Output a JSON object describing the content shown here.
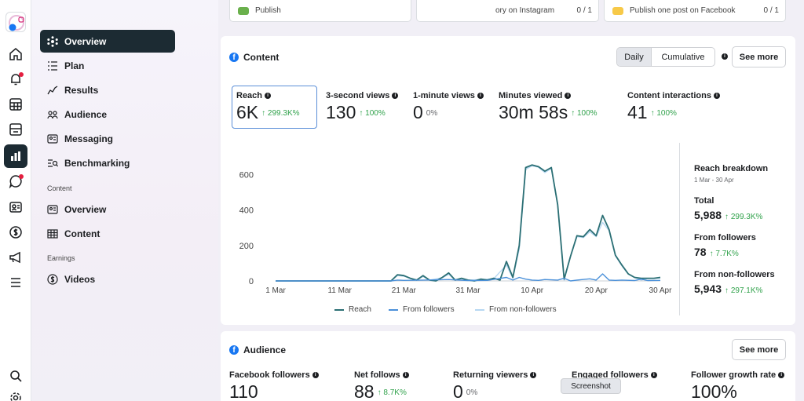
{
  "top_tasks": [
    {
      "text": "Publish",
      "count": ""
    },
    {
      "text": "ory on Instagram",
      "count": "0 / 1"
    },
    {
      "text": "Publish one post on Facebook",
      "count": "0 / 1"
    }
  ],
  "sidebar": {
    "items": [
      {
        "label": "Overview",
        "icon": "overview-icon"
      },
      {
        "label": "Plan",
        "icon": "plan-icon"
      },
      {
        "label": "Results",
        "icon": "results-icon"
      },
      {
        "label": "Audience",
        "icon": "audience-icon"
      },
      {
        "label": "Messaging",
        "icon": "messaging-icon"
      },
      {
        "label": "Benchmarking",
        "icon": "benchmarking-icon"
      }
    ],
    "content_heading": "Content",
    "content_items": [
      {
        "label": "Overview",
        "icon": "content-overview-icon"
      },
      {
        "label": "Content",
        "icon": "content-table-icon"
      }
    ],
    "earnings_heading": "Earnings",
    "earnings_items": [
      {
        "label": "Videos",
        "icon": "dollar-icon"
      }
    ]
  },
  "content_card": {
    "title": "Content",
    "toggle": {
      "daily": "Daily",
      "cumulative": "Cumulative"
    },
    "see_more": "See more",
    "metrics": [
      {
        "label": "Reach",
        "value": "6K",
        "change": "↑ 299.3K%"
      },
      {
        "label": "3-second views",
        "value": "130",
        "change": "↑ 100%"
      },
      {
        "label": "1-minute views",
        "value": "0",
        "change": "0%"
      },
      {
        "label": "Minutes viewed",
        "value": "30m 58s",
        "change": "↑ 100%"
      },
      {
        "label": "Content interactions",
        "value": "41",
        "change": "↑ 100%"
      }
    ],
    "breakdown": {
      "title": "Reach breakdown",
      "date_range": "1 Mar - 30 Apr",
      "total_label": "Total",
      "total_value": "5,988",
      "total_change": "↑ 299.3K%",
      "followers_label": "From followers",
      "followers_value": "78",
      "followers_change": "↑ 7.7K%",
      "nonfollowers_label": "From non-followers",
      "nonfollowers_value": "5,943",
      "nonfollowers_change": "↑ 297.1K%"
    }
  },
  "chart_data": {
    "type": "line",
    "x_ticks": [
      "1 Mar",
      "11 Mar",
      "21 Mar",
      "31 Mar",
      "10 Apr",
      "20 Apr",
      "30 Apr"
    ],
    "y_ticks": [
      "0",
      "200",
      "400",
      "600"
    ],
    "ylim": [
      0,
      700
    ],
    "x_count": 61,
    "series": [
      {
        "name": "Reach",
        "color": "#2b6f74",
        "points": [
          [
            0,
            0
          ],
          [
            5,
            0
          ],
          [
            10,
            0
          ],
          [
            15,
            0
          ],
          [
            18,
            0
          ],
          [
            19,
            35
          ],
          [
            20,
            30
          ],
          [
            21,
            15
          ],
          [
            22,
            5
          ],
          [
            23,
            30
          ],
          [
            24,
            5
          ],
          [
            25,
            0
          ],
          [
            26,
            20
          ],
          [
            27,
            45
          ],
          [
            28,
            5
          ],
          [
            29,
            15
          ],
          [
            30,
            5
          ],
          [
            31,
            0
          ],
          [
            32,
            10
          ],
          [
            33,
            5
          ],
          [
            34,
            15
          ],
          [
            35,
            5
          ],
          [
            36,
            110
          ],
          [
            37,
            20
          ],
          [
            38,
            200
          ],
          [
            39,
            640
          ],
          [
            40,
            655
          ],
          [
            41,
            645
          ],
          [
            42,
            620
          ],
          [
            43,
            640
          ],
          [
            44,
            430
          ],
          [
            45,
            10
          ],
          [
            46,
            140
          ],
          [
            47,
            255
          ],
          [
            48,
            250
          ],
          [
            49,
            290
          ],
          [
            50,
            255
          ],
          [
            51,
            370
          ],
          [
            52,
            290
          ],
          [
            53,
            145
          ],
          [
            54,
            90
          ],
          [
            55,
            40
          ],
          [
            56,
            20
          ],
          [
            57,
            15
          ],
          [
            58,
            15
          ],
          [
            59,
            15
          ],
          [
            60,
            20
          ]
        ]
      },
      {
        "name": "From followers",
        "color": "#4a90d9",
        "points": [
          [
            0,
            0
          ],
          [
            18,
            0
          ],
          [
            19,
            5
          ],
          [
            20,
            3
          ],
          [
            23,
            5
          ],
          [
            27,
            8
          ],
          [
            30,
            2
          ],
          [
            33,
            3
          ],
          [
            36,
            20
          ],
          [
            37,
            5
          ],
          [
            38,
            20
          ],
          [
            39,
            10
          ],
          [
            40,
            5
          ],
          [
            41,
            3
          ],
          [
            42,
            8
          ],
          [
            44,
            5
          ],
          [
            45,
            15
          ],
          [
            46,
            0
          ],
          [
            47,
            5
          ],
          [
            49,
            12
          ],
          [
            50,
            5
          ],
          [
            51,
            40
          ],
          [
            52,
            5
          ],
          [
            53,
            3
          ],
          [
            54,
            5
          ],
          [
            56,
            2
          ],
          [
            57,
            10
          ],
          [
            58,
            2
          ],
          [
            60,
            3
          ]
        ]
      },
      {
        "name": "From non-followers",
        "color": "#b6d7f2",
        "points": [
          [
            0,
            0
          ],
          [
            18,
            0
          ],
          [
            19,
            30
          ],
          [
            20,
            27
          ],
          [
            21,
            14
          ],
          [
            22,
            5
          ],
          [
            23,
            25
          ],
          [
            24,
            5
          ],
          [
            26,
            18
          ],
          [
            27,
            37
          ],
          [
            28,
            5
          ],
          [
            29,
            14
          ],
          [
            30,
            5
          ],
          [
            32,
            8
          ],
          [
            34,
            12
          ],
          [
            36,
            90
          ],
          [
            37,
            15
          ],
          [
            38,
            180
          ],
          [
            39,
            630
          ],
          [
            40,
            650
          ],
          [
            41,
            642
          ],
          [
            42,
            612
          ],
          [
            43,
            635
          ],
          [
            44,
            425
          ],
          [
            45,
            5
          ],
          [
            46,
            140
          ],
          [
            47,
            250
          ],
          [
            48,
            245
          ],
          [
            49,
            278
          ],
          [
            50,
            250
          ],
          [
            51,
            330
          ],
          [
            52,
            285
          ],
          [
            53,
            142
          ],
          [
            54,
            85
          ],
          [
            55,
            38
          ],
          [
            56,
            18
          ],
          [
            57,
            5
          ],
          [
            58,
            13
          ],
          [
            60,
            17
          ]
        ]
      }
    ]
  },
  "audience_card": {
    "title": "Audience",
    "see_more": "See more",
    "metrics": [
      {
        "label": "Facebook followers",
        "value": "110",
        "change": ""
      },
      {
        "label": "Net follows",
        "value": "88",
        "change": "↑ 8.7K%"
      },
      {
        "label": "Returning viewers",
        "value": "0",
        "change": "0%"
      },
      {
        "label": "Engaged followers",
        "value": "--",
        "change": ""
      },
      {
        "label": "Follower growth rate",
        "value": "100%",
        "change": ""
      }
    ]
  },
  "tooltip": "Screenshot"
}
